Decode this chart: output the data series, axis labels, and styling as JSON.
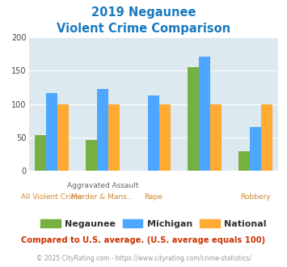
{
  "title_line1": "2019 Negaunee",
  "title_line2": "Violent Crime Comparison",
  "title_color": "#1a7abf",
  "negaunee": [
    54,
    46,
    0,
    155,
    29
  ],
  "michigan": [
    116,
    123,
    113,
    171,
    66
  ],
  "national": [
    100,
    100,
    100,
    100,
    100
  ],
  "color_negaunee": "#76b041",
  "color_michigan": "#4da6ff",
  "color_national": "#ffaa33",
  "ylim": [
    0,
    200
  ],
  "yticks": [
    0,
    50,
    100,
    150,
    200
  ],
  "bg_color": "#dce9f0",
  "legend_labels": [
    "Negaunee",
    "Michigan",
    "National"
  ],
  "footer_text": "Compared to U.S. average. (U.S. average equals 100)",
  "footer_color": "#cc3300",
  "credit_text": "© 2025 CityRating.com - https://www.cityrating.com/crime-statistics/",
  "credit_color": "#999999",
  "top_xlabels": [
    "",
    "Aggravated Assault",
    "",
    "",
    ""
  ],
  "bot_xlabels": [
    "All Violent Crime",
    "Murder & Mans...",
    "Rape",
    "",
    "Robbery"
  ],
  "top_label_x_offset": [
    0,
    0,
    0,
    0,
    0
  ],
  "n_groups": 5
}
